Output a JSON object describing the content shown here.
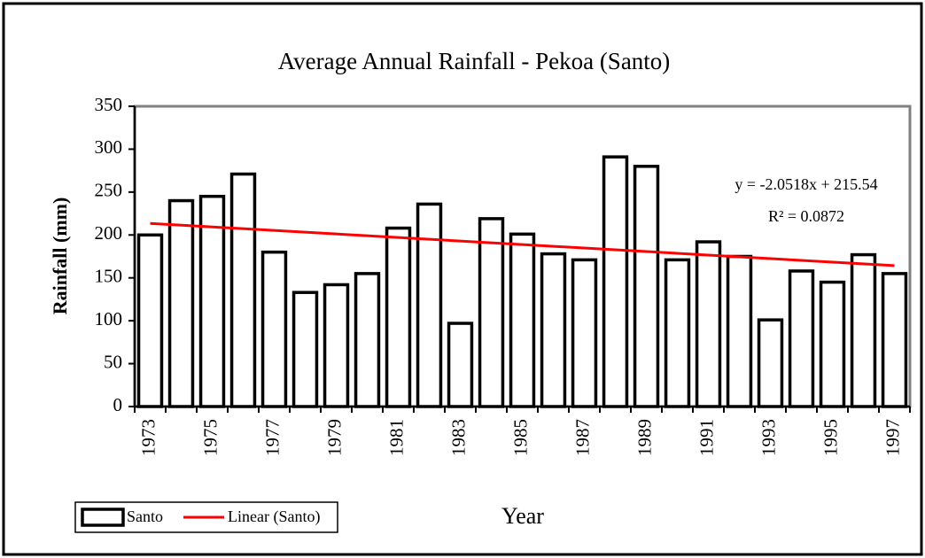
{
  "chart_data": {
    "type": "bar",
    "title": "Average Annual Rainfall - Pekoa (Santo)",
    "x_label": "Year",
    "y_label": "Rainfall (mm)",
    "categories": [
      "1973",
      null,
      "1975",
      null,
      "1977",
      null,
      "1979",
      null,
      "1981",
      null,
      "1983",
      null,
      "1985",
      null,
      "1987",
      null,
      "1989",
      null,
      "1991",
      null,
      "1993",
      null,
      "1995",
      null,
      "1997"
    ],
    "series": [
      {
        "name": "Santo",
        "color": "#ffffff",
        "values": [
          200,
          240,
          245,
          271,
          180,
          133,
          142,
          155,
          208,
          236,
          97,
          219,
          201,
          178,
          171,
          291,
          280,
          171,
          192,
          175,
          101,
          158,
          145,
          177,
          155
        ]
      }
    ],
    "trendline": {
      "name": "Linear (Santo)",
      "color": "#ff0000",
      "slope": -2.0518,
      "intercept": 215.54
    },
    "annotations": [
      "y = -2.0518x + 215.54",
      "R² = 0.0872"
    ],
    "ylim": [
      0,
      350
    ],
    "yticks": [
      0,
      50,
      100,
      150,
      200,
      250,
      300,
      350
    ],
    "legend": "bottom-left"
  }
}
